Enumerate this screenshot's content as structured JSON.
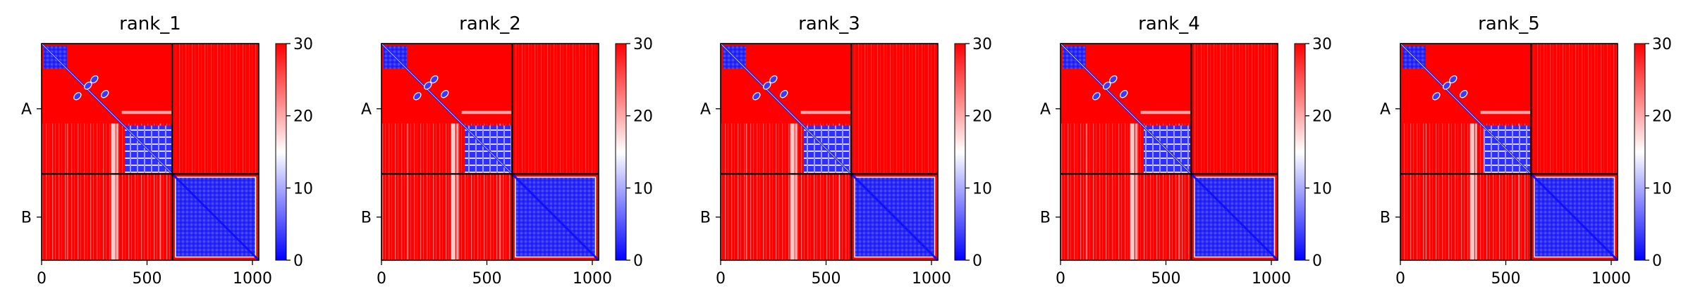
{
  "chart_data": [
    {
      "type": "heatmap",
      "title": "rank_1",
      "xticks": [
        "0",
        "500",
        "1000"
      ],
      "xtick_values": [
        0,
        500,
        1000
      ],
      "xlim": [
        0,
        1030
      ],
      "ylim": [
        0,
        1030
      ],
      "chain_labels": [
        "A",
        "B"
      ],
      "chain_boundary": 620,
      "colorbar": {
        "ticks": [
          "0",
          "10",
          "20",
          "30"
        ],
        "range": [
          0,
          30
        ],
        "colormap": "bwr"
      }
    },
    {
      "type": "heatmap",
      "title": "rank_2",
      "xticks": [
        "0",
        "500",
        "1000"
      ],
      "xtick_values": [
        0,
        500,
        1000
      ],
      "xlim": [
        0,
        1030
      ],
      "ylim": [
        0,
        1030
      ],
      "chain_labels": [
        "A",
        "B"
      ],
      "chain_boundary": 620,
      "colorbar": {
        "ticks": [
          "0",
          "10",
          "20",
          "30"
        ],
        "range": [
          0,
          30
        ],
        "colormap": "bwr"
      }
    },
    {
      "type": "heatmap",
      "title": "rank_3",
      "xticks": [
        "0",
        "500",
        "1000"
      ],
      "xtick_values": [
        0,
        500,
        1000
      ],
      "xlim": [
        0,
        1030
      ],
      "ylim": [
        0,
        1030
      ],
      "chain_labels": [
        "A",
        "B"
      ],
      "chain_boundary": 620,
      "colorbar": {
        "ticks": [
          "0",
          "10",
          "20",
          "30"
        ],
        "range": [
          0,
          30
        ],
        "colormap": "bwr"
      }
    },
    {
      "type": "heatmap",
      "title": "rank_4",
      "xticks": [
        "0",
        "500",
        "1000"
      ],
      "xtick_values": [
        0,
        500,
        1000
      ],
      "xlim": [
        0,
        1030
      ],
      "ylim": [
        0,
        1030
      ],
      "chain_labels": [
        "A",
        "B"
      ],
      "chain_boundary": 620,
      "colorbar": {
        "ticks": [
          "0",
          "10",
          "20",
          "30"
        ],
        "range": [
          0,
          30
        ],
        "colormap": "bwr"
      }
    },
    {
      "type": "heatmap",
      "title": "rank_5",
      "xticks": [
        "0",
        "500",
        "1000"
      ],
      "xtick_values": [
        0,
        500,
        1000
      ],
      "xlim": [
        0,
        1030
      ],
      "ylim": [
        0,
        1030
      ],
      "chain_labels": [
        "A",
        "B"
      ],
      "chain_boundary": 620,
      "colorbar": {
        "ticks": [
          "0",
          "10",
          "20",
          "30"
        ],
        "range": [
          0,
          30
        ],
        "colormap": "bwr"
      }
    }
  ],
  "colors": {
    "high": "#ff0000",
    "mid": "#ffffff",
    "low": "#0000ff",
    "frame": "#000000"
  }
}
